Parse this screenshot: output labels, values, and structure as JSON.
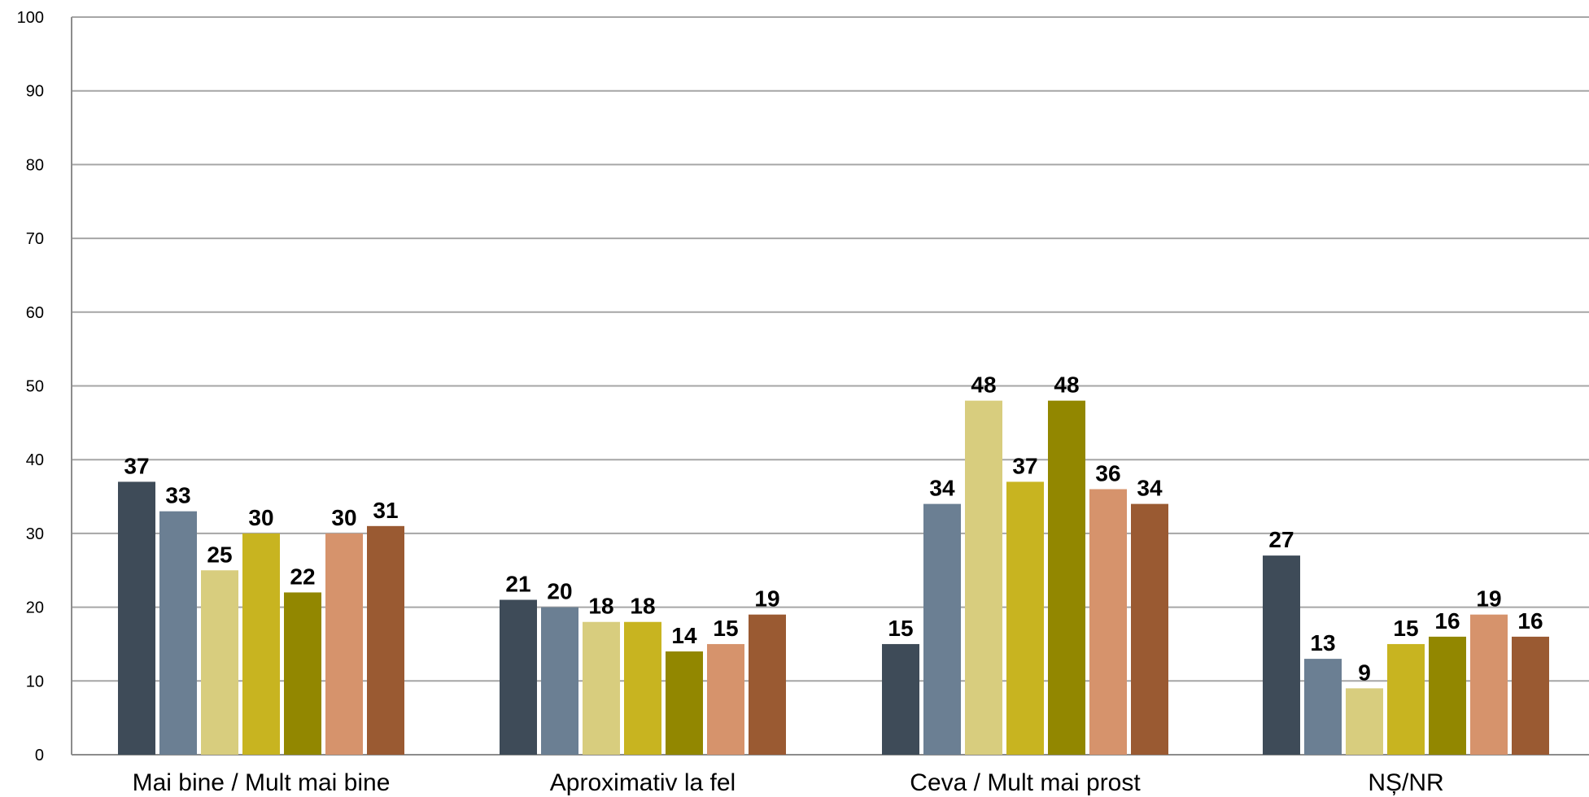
{
  "chart_data": {
    "type": "bar",
    "categories": [
      "Mai bine / Mult mai bine",
      "Aproximativ la fel",
      "Ceva  / Mult mai prost",
      "NȘ/NR"
    ],
    "series": [
      {
        "values": [
          37,
          21,
          15,
          27
        ],
        "color": "#3e4b58"
      },
      {
        "values": [
          33,
          20,
          34,
          13
        ],
        "color": "#6b7f93"
      },
      {
        "values": [
          25,
          18,
          48,
          9
        ],
        "color": "#d8cd7e"
      },
      {
        "values": [
          30,
          18,
          37,
          15
        ],
        "color": "#c8b420"
      },
      {
        "values": [
          22,
          14,
          48,
          16
        ],
        "color": "#928700"
      },
      {
        "values": [
          30,
          15,
          36,
          19
        ],
        "color": "#d6936c"
      },
      {
        "values": [
          31,
          19,
          34,
          16
        ],
        "color": "#9a5a32"
      }
    ],
    "ylim": [
      0,
      100
    ],
    "yticks": [
      "0",
      "10",
      "20",
      "30",
      "40",
      "50",
      "60",
      "70",
      "80",
      "90",
      "100"
    ],
    "grid": true,
    "legend": "none"
  }
}
